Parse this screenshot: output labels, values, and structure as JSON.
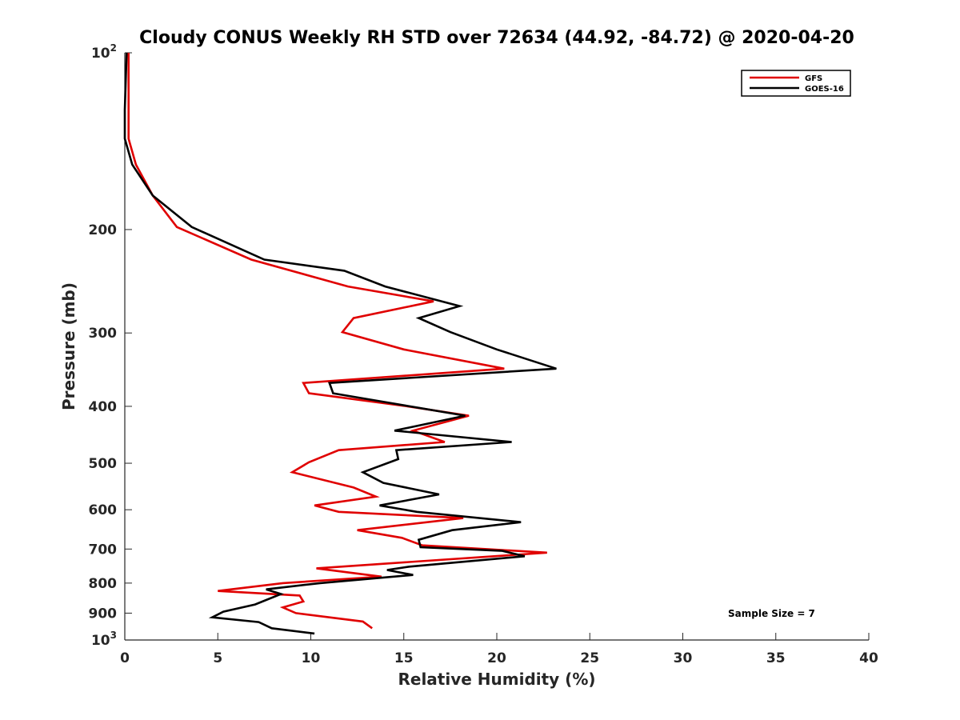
{
  "chart_data": {
    "type": "line",
    "title": "Cloudy CONUS Weekly RH STD over 72634 (44.92, -84.72) @ 2020-04-20",
    "xlabel": "Relative Humidity (%)",
    "ylabel": "Pressure (mb)",
    "xlim": [
      0,
      40
    ],
    "ylim": [
      100,
      1000
    ],
    "y_scale": "log",
    "y_reversed": true,
    "x_ticks": [
      "0",
      "5",
      "10",
      "15",
      "20",
      "25",
      "30",
      "35",
      "40"
    ],
    "y_ticks": [
      {
        "value": 100,
        "label": "10",
        "sup": "2"
      },
      {
        "value": 200,
        "label": "200"
      },
      {
        "value": 300,
        "label": "300"
      },
      {
        "value": 400,
        "label": "400"
      },
      {
        "value": 500,
        "label": "500"
      },
      {
        "value": 600,
        "label": "600"
      },
      {
        "value": 700,
        "label": "700"
      },
      {
        "value": 800,
        "label": "800"
      },
      {
        "value": 900,
        "label": "900"
      },
      {
        "value": 1000,
        "label": "10",
        "sup": "3"
      }
    ],
    "grid": false,
    "legend_position": "top-right",
    "annotation": "Sample Size = 7",
    "series": [
      {
        "name": "GFS",
        "color": "#e00000",
        "points": [
          [
            0.2,
            100
          ],
          [
            0.2,
            125
          ],
          [
            0.2,
            140
          ],
          [
            0.6,
            155
          ],
          [
            1.5,
            175
          ],
          [
            2.8,
            198
          ],
          [
            6.8,
            225
          ],
          [
            12.0,
            250
          ],
          [
            16.6,
            265
          ],
          [
            12.3,
            283
          ],
          [
            11.7,
            299
          ],
          [
            15.0,
            320
          ],
          [
            20.4,
            345
          ],
          [
            9.6,
            365
          ],
          [
            9.9,
            380
          ],
          [
            15.2,
            400
          ],
          [
            18.5,
            415
          ],
          [
            15.5,
            440
          ],
          [
            17.2,
            460
          ],
          [
            11.5,
            475
          ],
          [
            9.9,
            498
          ],
          [
            9.0,
            518
          ],
          [
            12.3,
            550
          ],
          [
            13.5,
            570
          ],
          [
            10.2,
            590
          ],
          [
            11.5,
            605
          ],
          [
            18.2,
            620
          ],
          [
            12.5,
            650
          ],
          [
            14.9,
            670
          ],
          [
            16.0,
            690
          ],
          [
            22.7,
            710
          ],
          [
            10.3,
            755
          ],
          [
            13.8,
            780
          ],
          [
            8.5,
            800
          ],
          [
            5.0,
            825
          ],
          [
            9.4,
            840
          ],
          [
            9.6,
            860
          ],
          [
            8.5,
            880
          ],
          [
            9.2,
            900
          ],
          [
            12.8,
            930
          ],
          [
            13.3,
            955
          ]
        ]
      },
      {
        "name": "GOES-16",
        "color": "#000000",
        "points": [
          [
            0.1,
            100
          ],
          [
            0.0,
            125
          ],
          [
            0.0,
            140
          ],
          [
            0.4,
            155
          ],
          [
            1.5,
            175
          ],
          [
            3.6,
            198
          ],
          [
            7.5,
            225
          ],
          [
            11.8,
            235
          ],
          [
            14.0,
            250
          ],
          [
            18.0,
            270
          ],
          [
            15.8,
            283
          ],
          [
            17.5,
            299
          ],
          [
            20.0,
            320
          ],
          [
            23.2,
            345
          ],
          [
            11.0,
            365
          ],
          [
            11.2,
            380
          ],
          [
            18.3,
            415
          ],
          [
            14.5,
            440
          ],
          [
            20.8,
            460
          ],
          [
            14.6,
            475
          ],
          [
            14.7,
            492
          ],
          [
            12.8,
            518
          ],
          [
            13.9,
            540
          ],
          [
            16.9,
            565
          ],
          [
            13.7,
            590
          ],
          [
            15.7,
            605
          ],
          [
            21.3,
            630
          ],
          [
            17.6,
            650
          ],
          [
            15.8,
            675
          ],
          [
            15.9,
            695
          ],
          [
            20.3,
            705
          ],
          [
            21.5,
            720
          ],
          [
            15.3,
            750
          ],
          [
            14.1,
            760
          ],
          [
            15.5,
            775
          ],
          [
            10.5,
            800
          ],
          [
            7.6,
            820
          ],
          [
            8.4,
            835
          ],
          [
            7.0,
            870
          ],
          [
            5.3,
            895
          ],
          [
            4.7,
            915
          ],
          [
            7.2,
            932
          ],
          [
            7.9,
            955
          ],
          [
            10.2,
            975
          ]
        ]
      }
    ]
  }
}
